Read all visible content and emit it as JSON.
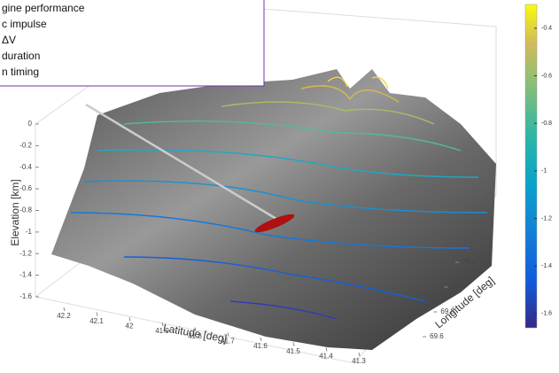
{
  "chart_data": {
    "type": "surface",
    "annotation": [
      "gine performance",
      "c impulse",
      "ΔV",
      "duration",
      "n timing"
    ],
    "xlabel": "Latitude [deg]",
    "ylabel": "Longitude [deg]",
    "zlabel": "Elevation [km]",
    "xlim": [
      42.2,
      41.3
    ],
    "xticks": [
      42.2,
      42.1,
      42,
      41.9,
      41.8,
      41.7,
      41.6,
      41.5,
      41.4,
      41.3
    ],
    "ylim": [
      69.5,
      70.3
    ],
    "yticks": [
      69.6,
      69.8,
      70,
      70.2
    ],
    "zlim": [
      -1.6,
      0
    ],
    "zticks": [
      0,
      -0.2,
      -0.4,
      -0.6,
      -0.8,
      -1,
      -1.2,
      -1.4,
      -1.6
    ],
    "clim": [
      -1.66,
      -0.3
    ],
    "cticks": [
      -0.4,
      -0.6,
      -0.8,
      -1,
      -1.2,
      -1.4,
      -1.6
    ],
    "colormap": "parula",
    "marker_color": "#b01010"
  }
}
